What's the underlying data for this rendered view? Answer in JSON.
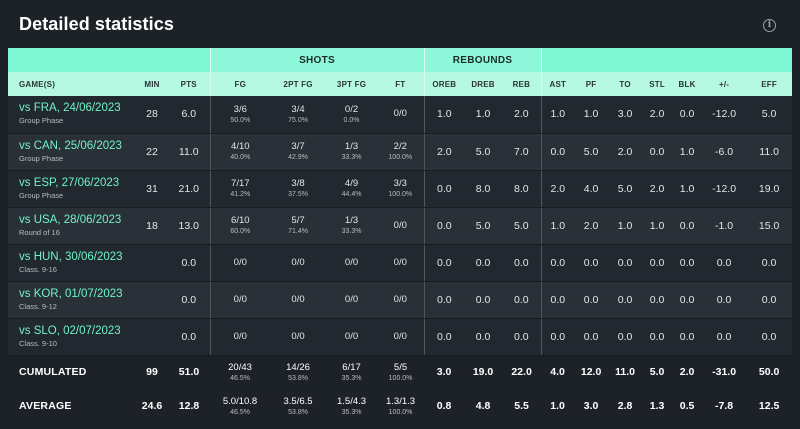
{
  "title": "Detailed statistics",
  "info_icon": "info-circle-icon",
  "group_headers": {
    "shots": "SHOTS",
    "rebounds": "REBOUNDS"
  },
  "columns": [
    "GAME(S)",
    "MIN",
    "PTS",
    "FG",
    "2PT FG",
    "3PT FG",
    "FT",
    "OREB",
    "DREB",
    "REB",
    "AST",
    "PF",
    "TO",
    "STL",
    "BLK",
    "+/-",
    "EFF"
  ],
  "games": [
    {
      "opponent": "vs FRA, 24/06/2023",
      "phase": "Group Phase",
      "min": "28",
      "pts": "6.0",
      "fg": [
        "3/6",
        "50.0%"
      ],
      "fg2": [
        "3/4",
        "75.0%"
      ],
      "fg3": [
        "0/2",
        "0.0%"
      ],
      "ft": [
        "0/0",
        ""
      ],
      "oreb": "1.0",
      "dreb": "1.0",
      "reb": "2.0",
      "ast": "1.0",
      "pf": "1.0",
      "to": "3.0",
      "stl": "2.0",
      "blk": "0.0",
      "pm": "-12.0",
      "eff": "5.0"
    },
    {
      "opponent": "vs CAN, 25/06/2023",
      "phase": "Group Phase",
      "min": "22",
      "pts": "11.0",
      "fg": [
        "4/10",
        "40.0%"
      ],
      "fg2": [
        "3/7",
        "42.9%"
      ],
      "fg3": [
        "1/3",
        "33.3%"
      ],
      "ft": [
        "2/2",
        "100.0%"
      ],
      "oreb": "2.0",
      "dreb": "5.0",
      "reb": "7.0",
      "ast": "0.0",
      "pf": "5.0",
      "to": "2.0",
      "stl": "0.0",
      "blk": "1.0",
      "pm": "-6.0",
      "eff": "11.0"
    },
    {
      "opponent": "vs ESP, 27/06/2023",
      "phase": "Group Phase",
      "min": "31",
      "pts": "21.0",
      "fg": [
        "7/17",
        "41.2%"
      ],
      "fg2": [
        "3/8",
        "37.5%"
      ],
      "fg3": [
        "4/9",
        "44.4%"
      ],
      "ft": [
        "3/3",
        "100.0%"
      ],
      "oreb": "0.0",
      "dreb": "8.0",
      "reb": "8.0",
      "ast": "2.0",
      "pf": "4.0",
      "to": "5.0",
      "stl": "2.0",
      "blk": "1.0",
      "pm": "-12.0",
      "eff": "19.0"
    },
    {
      "opponent": "vs USA, 28/06/2023",
      "phase": "Round of 16",
      "min": "18",
      "pts": "13.0",
      "fg": [
        "6/10",
        "60.0%"
      ],
      "fg2": [
        "5/7",
        "71.4%"
      ],
      "fg3": [
        "1/3",
        "33.3%"
      ],
      "ft": [
        "0/0",
        ""
      ],
      "oreb": "0.0",
      "dreb": "5.0",
      "reb": "5.0",
      "ast": "1.0",
      "pf": "2.0",
      "to": "1.0",
      "stl": "1.0",
      "blk": "0.0",
      "pm": "-1.0",
      "eff": "15.0"
    },
    {
      "opponent": "vs HUN, 30/06/2023",
      "phase": "Class. 9-16",
      "min": "",
      "pts": "0.0",
      "fg": [
        "0/0",
        ""
      ],
      "fg2": [
        "0/0",
        ""
      ],
      "fg3": [
        "0/0",
        ""
      ],
      "ft": [
        "0/0",
        ""
      ],
      "oreb": "0.0",
      "dreb": "0.0",
      "reb": "0.0",
      "ast": "0.0",
      "pf": "0.0",
      "to": "0.0",
      "stl": "0.0",
      "blk": "0.0",
      "pm": "0.0",
      "eff": "0.0"
    },
    {
      "opponent": "vs KOR, 01/07/2023",
      "phase": "Class. 9-12",
      "min": "",
      "pts": "0.0",
      "fg": [
        "0/0",
        ""
      ],
      "fg2": [
        "0/0",
        ""
      ],
      "fg3": [
        "0/0",
        ""
      ],
      "ft": [
        "0/0",
        ""
      ],
      "oreb": "0.0",
      "dreb": "0.0",
      "reb": "0.0",
      "ast": "0.0",
      "pf": "0.0",
      "to": "0.0",
      "stl": "0.0",
      "blk": "0.0",
      "pm": "0.0",
      "eff": "0.0"
    },
    {
      "opponent": "vs SLO, 02/07/2023",
      "phase": "Class. 9-10",
      "min": "",
      "pts": "0.0",
      "fg": [
        "0/0",
        ""
      ],
      "fg2": [
        "0/0",
        ""
      ],
      "fg3": [
        "0/0",
        ""
      ],
      "ft": [
        "0/0",
        ""
      ],
      "oreb": "0.0",
      "dreb": "0.0",
      "reb": "0.0",
      "ast": "0.0",
      "pf": "0.0",
      "to": "0.0",
      "stl": "0.0",
      "blk": "0.0",
      "pm": "0.0",
      "eff": "0.0"
    }
  ],
  "totals": [
    {
      "label": "CUMULATED",
      "min": "99",
      "pts": "51.0",
      "fg": [
        "20/43",
        "46.5%"
      ],
      "fg2": [
        "14/26",
        "53.8%"
      ],
      "fg3": [
        "6/17",
        "35.3%"
      ],
      "ft": [
        "5/5",
        "100.0%"
      ],
      "oreb": "3.0",
      "dreb": "19.0",
      "reb": "22.0",
      "ast": "4.0",
      "pf": "12.0",
      "to": "11.0",
      "stl": "5.0",
      "blk": "2.0",
      "pm": "-31.0",
      "eff": "50.0"
    },
    {
      "label": "AVERAGE",
      "min": "24.6",
      "pts": "12.8",
      "fg": [
        "5.0/10.8",
        "46.5%"
      ],
      "fg2": [
        "3.5/6.5",
        "53.8%"
      ],
      "fg3": [
        "1.5/4.3",
        "35.3%"
      ],
      "ft": [
        "1.3/1.3",
        "100.0%"
      ],
      "oreb": "0.8",
      "dreb": "4.8",
      "reb": "5.5",
      "ast": "1.0",
      "pf": "3.0",
      "to": "2.8",
      "stl": "1.3",
      "blk": "0.5",
      "pm": "-7.8",
      "eff": "12.5"
    }
  ]
}
